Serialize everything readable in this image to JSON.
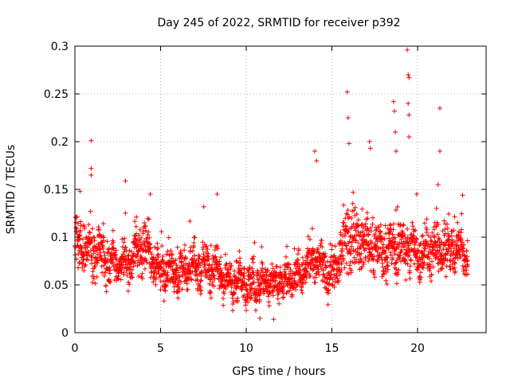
{
  "chart_data": {
    "type": "scatter",
    "title": "Day 245 of 2022, SRMTID for receiver p392",
    "xlabel": "GPS time / hours",
    "ylabel": "SRMTID / TECUs",
    "xlim": [
      0,
      24
    ],
    "ylim": [
      0,
      0.3
    ],
    "xticks": [
      0,
      5,
      10,
      15,
      20
    ],
    "xtick_labels": [
      "0",
      "5",
      "10",
      "15",
      "20"
    ],
    "yticks": [
      0,
      0.05,
      0.1,
      0.15,
      0.2,
      0.25,
      0.3
    ],
    "ytick_labels": [
      "0",
      "0.05",
      "0.1",
      "0.15",
      "0.2",
      "0.25",
      "0.3"
    ],
    "grid": true,
    "marker": "+",
    "series_color": "#ff0000",
    "sample_step_hours": 0.01,
    "series_end_hours": 22.95,
    "trend_hours": [
      0,
      1,
      2,
      3,
      4,
      5,
      6,
      7,
      8,
      9,
      10,
      11,
      12,
      13,
      14,
      15,
      16,
      17,
      18,
      19,
      20,
      21,
      22,
      23
    ],
    "trend_values": [
      0.09,
      0.085,
      0.075,
      0.072,
      0.09,
      0.065,
      0.063,
      0.07,
      0.068,
      0.055,
      0.05,
      0.052,
      0.055,
      0.06,
      0.075,
      0.06,
      0.1,
      0.095,
      0.085,
      0.09,
      0.085,
      0.085,
      0.09,
      0.08
    ],
    "spread_values": [
      0.025,
      0.025,
      0.022,
      0.022,
      0.025,
      0.02,
      0.02,
      0.022,
      0.022,
      0.018,
      0.018,
      0.018,
      0.018,
      0.02,
      0.025,
      0.022,
      0.035,
      0.03,
      0.028,
      0.03,
      0.028,
      0.028,
      0.025,
      0.025
    ],
    "notable_points": [
      {
        "x": 0.95,
        "y": 0.201
      },
      {
        "x": 0.95,
        "y": 0.172
      },
      {
        "x": 0.95,
        "y": 0.165
      },
      {
        "x": 0.3,
        "y": 0.148
      },
      {
        "x": 2.95,
        "y": 0.159
      },
      {
        "x": 4.4,
        "y": 0.145
      },
      {
        "x": 8.3,
        "y": 0.145
      },
      {
        "x": 14.0,
        "y": 0.19
      },
      {
        "x": 14.1,
        "y": 0.18
      },
      {
        "x": 15.9,
        "y": 0.252
      },
      {
        "x": 15.95,
        "y": 0.225
      },
      {
        "x": 16.0,
        "y": 0.198
      },
      {
        "x": 17.2,
        "y": 0.2
      },
      {
        "x": 17.25,
        "y": 0.193
      },
      {
        "x": 18.6,
        "y": 0.242
      },
      {
        "x": 18.65,
        "y": 0.232
      },
      {
        "x": 18.7,
        "y": 0.21
      },
      {
        "x": 18.75,
        "y": 0.19
      },
      {
        "x": 19.4,
        "y": 0.296
      },
      {
        "x": 19.45,
        "y": 0.27
      },
      {
        "x": 19.5,
        "y": 0.267
      },
      {
        "x": 19.45,
        "y": 0.24
      },
      {
        "x": 19.5,
        "y": 0.228
      },
      {
        "x": 19.5,
        "y": 0.205
      },
      {
        "x": 19.95,
        "y": 0.145
      },
      {
        "x": 21.3,
        "y": 0.235
      },
      {
        "x": 21.3,
        "y": 0.19
      },
      {
        "x": 21.2,
        "y": 0.155
      },
      {
        "x": 10.8,
        "y": 0.015
      },
      {
        "x": 11.6,
        "y": 0.014
      }
    ]
  }
}
